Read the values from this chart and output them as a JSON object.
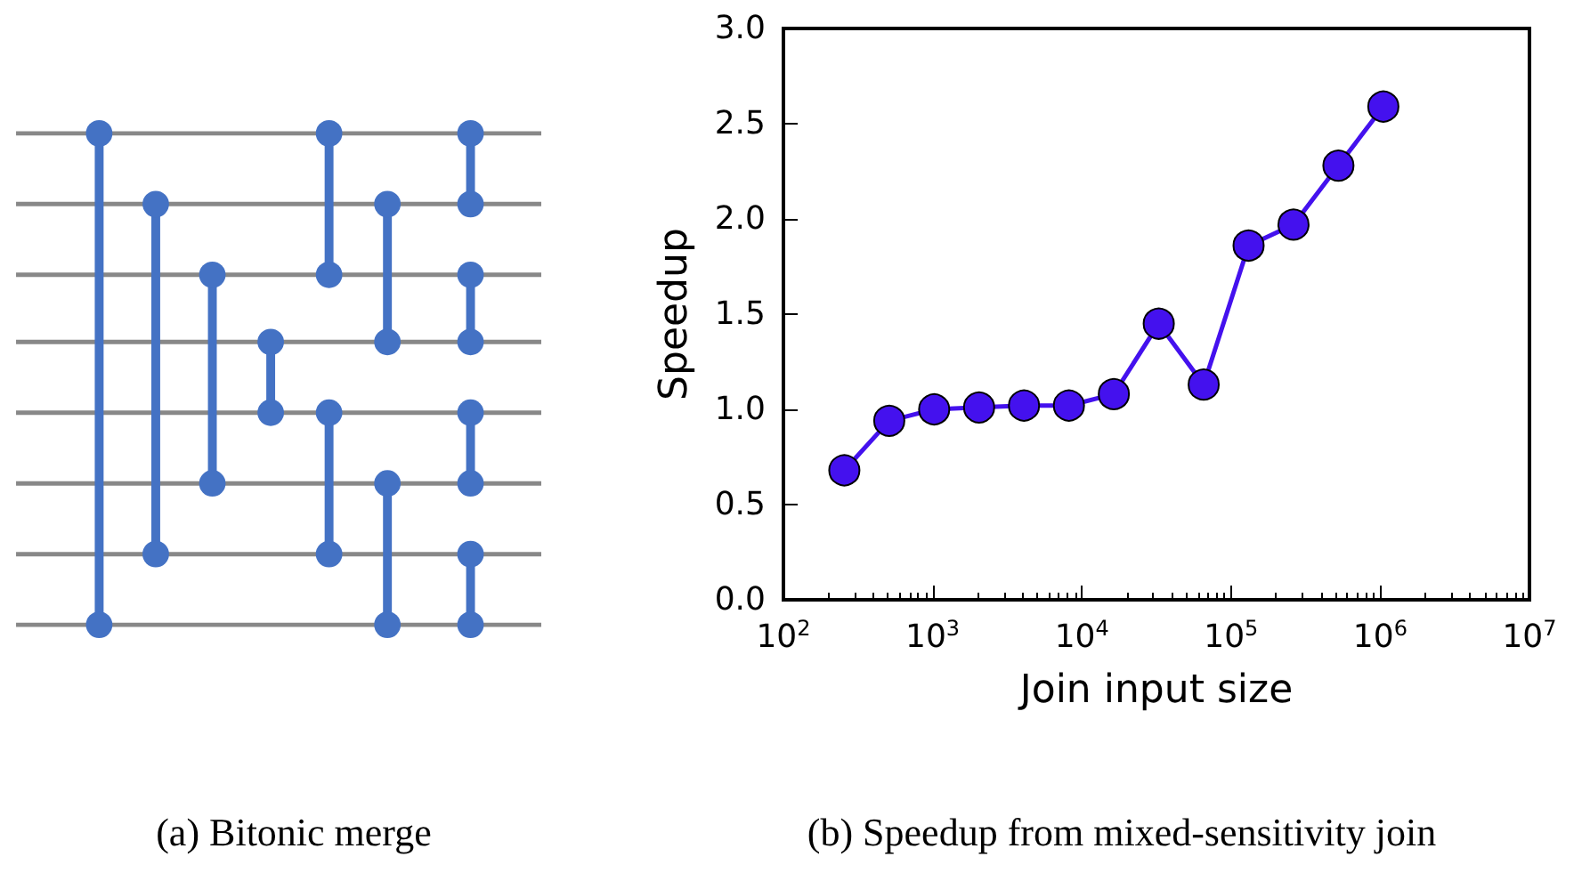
{
  "chart_data": [
    {
      "type": "other",
      "title": "(a) Bitonic merge"
    },
    {
      "type": "line",
      "title": "(b) Speedup from mixed-sensitivity join",
      "xlabel": "Join input size",
      "ylabel": "Speedup",
      "x": [
        256,
        512,
        1024,
        2048,
        4096,
        8192,
        16384,
        32768,
        65536,
        131072,
        262144,
        524288,
        1048576
      ],
      "series": [
        {
          "color": "#4411ee",
          "values": [
            0.68,
            0.94,
            1.0,
            1.01,
            1.02,
            1.02,
            1.08,
            1.45,
            1.13,
            1.86,
            1.97,
            2.28,
            2.59
          ]
        }
      ],
      "log": "x",
      "xlim": [
        100,
        10000000
      ],
      "xticks": [
        {
          "value": 100,
          "label": "10$^{2}$"
        },
        {
          "value": 1000,
          "label": "10$^{3}$"
        },
        {
          "value": 10000,
          "label": "10$^{4}$"
        },
        {
          "value": 100000,
          "label": "10$^{5}$"
        },
        {
          "value": 1000000,
          "label": "10$^{6}$"
        },
        {
          "value": 10000000,
          "label": "10$^{7}$"
        }
      ],
      "ylim": [
        0,
        3
      ],
      "yticks": [
        {
          "value": 0,
          "label": "0.0"
        },
        {
          "value": 0.5,
          "label": "0.5"
        },
        {
          "value": 1,
          "label": "1.0"
        },
        {
          "value": 1.5,
          "label": "1.5"
        },
        {
          "value": 2,
          "label": "2.0"
        },
        {
          "value": 2.5,
          "label": "2.5"
        },
        {
          "value": 3,
          "label": "3.0"
        }
      ],
      "grid": false,
      "marker": "circle",
      "line_style": "solid"
    }
  ]
}
